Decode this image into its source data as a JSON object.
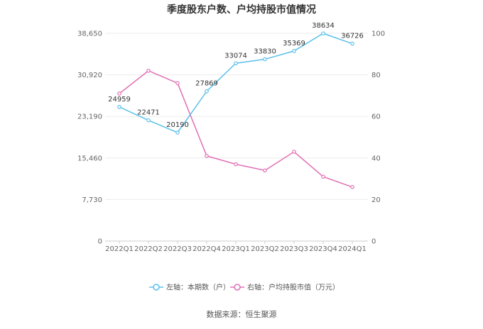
{
  "chart_data": {
    "type": "line",
    "title": "季度股东户数、户均持股市值情况",
    "categories": [
      "2022Q1",
      "2022Q2",
      "2022Q3",
      "2022Q4",
      "2023Q1",
      "2023Q2",
      "2023Q3",
      "2023Q4",
      "2024Q1"
    ],
    "left_axis": {
      "min": 0,
      "max": 38650,
      "ticks": [
        "0",
        "7,730",
        "15,460",
        "23,190",
        "30,920",
        "38,650"
      ]
    },
    "right_axis": {
      "min": 0,
      "max": 100,
      "ticks": [
        "0",
        "20",
        "40",
        "60",
        "80",
        "100"
      ]
    },
    "series": [
      {
        "name": "左轴：本期数（户）",
        "axis": "left",
        "color": "#5bc0eb",
        "values": [
          24959,
          22471,
          20190,
          27869,
          33074,
          33830,
          35369,
          38634,
          36726
        ],
        "labels": [
          "24959",
          "22471",
          "20190",
          "27869",
          "33074",
          "33830",
          "35369",
          "38634",
          "36726"
        ]
      },
      {
        "name": "右轴：户均持股市值（万元）",
        "axis": "right",
        "color": "#e06fb4",
        "values": [
          71,
          82,
          76,
          41,
          37,
          34,
          43,
          31,
          26
        ]
      }
    ],
    "grid": true,
    "legend": "bottom"
  },
  "source_text": "数据来源：恒生聚源"
}
